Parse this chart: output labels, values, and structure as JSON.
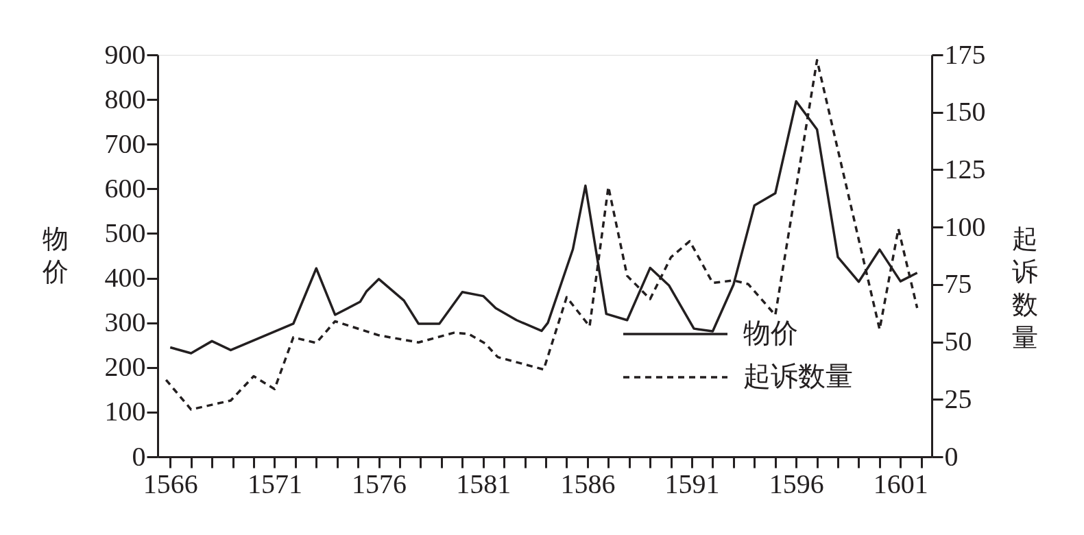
{
  "chart_data": {
    "type": "line",
    "xlim": [
      1565.4,
      1602.5
    ],
    "xticks": [
      1566,
      {
        "value": 1567,
        "label": null
      },
      {
        "value": 1568,
        "label": null
      },
      {
        "value": 1569,
        "label": null
      },
      {
        "value": 1570,
        "label": null
      },
      1571,
      {
        "value": 1572,
        "label": null
      },
      {
        "value": 1573,
        "label": null
      },
      {
        "value": 1574,
        "label": null
      },
      {
        "value": 1575,
        "label": null
      },
      1576,
      {
        "value": 1577,
        "label": null
      },
      {
        "value": 1578,
        "label": null
      },
      {
        "value": 1579,
        "label": null
      },
      {
        "value": 1580,
        "label": null
      },
      1581,
      {
        "value": 1582,
        "label": null
      },
      {
        "value": 1583,
        "label": null
      },
      {
        "value": 1584,
        "label": null
      },
      {
        "value": 1585,
        "label": null
      },
      1586,
      {
        "value": 1587,
        "label": null
      },
      {
        "value": 1588,
        "label": null
      },
      {
        "value": 1589,
        "label": null
      },
      {
        "value": 1590,
        "label": null
      },
      1591,
      {
        "value": 1592,
        "label": null
      },
      {
        "value": 1593,
        "label": null
      },
      {
        "value": 1594,
        "label": null
      },
      {
        "value": 1595,
        "label": null
      },
      1596,
      {
        "value": 1597,
        "label": null
      },
      {
        "value": 1598,
        "label": null
      },
      {
        "value": 1599,
        "label": null
      },
      {
        "value": 1600,
        "label": null
      },
      1601,
      {
        "value": 1602,
        "label": null
      }
    ],
    "ylabel": "物价",
    "y2label": "起诉数量",
    "ylim": [
      0,
      900
    ],
    "yticks": [
      0,
      100,
      200,
      300,
      400,
      500,
      600,
      700,
      800,
      900
    ],
    "y2lim": [
      0,
      175
    ],
    "y2ticks": [
      0,
      25,
      50,
      75,
      100,
      125,
      150,
      175
    ],
    "grid": false,
    "legend": "bottom right",
    "series": [
      {
        "name": "物价",
        "color": "#231f20",
        "line_style": "solid",
        "x": [
          1566.0,
          1567.0,
          1568.0,
          1568.9,
          1571.9,
          1573.0,
          1573.9,
          1575.1,
          1575.4,
          1576.0,
          1577.2,
          1577.9,
          1578.9,
          1580.0,
          1581.0,
          1581.6,
          1582.6,
          1583.8,
          1584.1,
          1585.3,
          1585.9,
          1586.9,
          1587.9,
          1589.0,
          1589.9,
          1591.1,
          1592.0,
          1593.0,
          1594.0,
          1595.0,
          1596.0,
          1597.0,
          1598.0,
          1599.0,
          1600.0,
          1601.0,
          1601.8
        ],
        "values": [
          245,
          232,
          259,
          239,
          298,
          422,
          318,
          347,
          370,
          398,
          350,
          298,
          298,
          369,
          360,
          333,
          306,
          282,
          300,
          465,
          607,
          320,
          306,
          423,
          384,
          287,
          281,
          386,
          563,
          590,
          796,
          733,
          447,
          392,
          464,
          393,
          412
        ]
      },
      {
        "name": "起诉数量",
        "color": "#231f20",
        "line_style": "dashed",
        "axis": "y2",
        "x": [
          1565.8,
          1567.0,
          1568.9,
          1570.0,
          1571.0,
          1571.9,
          1573.0,
          1573.9,
          1576.0,
          1577.9,
          1579.6,
          1580.3,
          1581.1,
          1581.7,
          1583.9,
          1585.0,
          1586.1,
          1587.0,
          1587.9,
          1589.0,
          1590.0,
          1590.9,
          1592.0,
          1593.0,
          1593.7,
          1595.0,
          1597.0,
          1600.0,
          1600.9,
          1601.8
        ],
        "values": [
          33.5,
          20.6,
          24.5,
          35.1,
          29.5,
          52.0,
          49.6,
          59.0,
          52.9,
          49.8,
          54.0,
          53.5,
          49.3,
          43.4,
          38.0,
          69.5,
          56.8,
          117.6,
          78.8,
          68.7,
          86.9,
          93.9,
          75.7,
          76.8,
          75.2,
          61.7,
          172.7,
          55.5,
          99.3,
          64.8
        ]
      }
    ]
  }
}
